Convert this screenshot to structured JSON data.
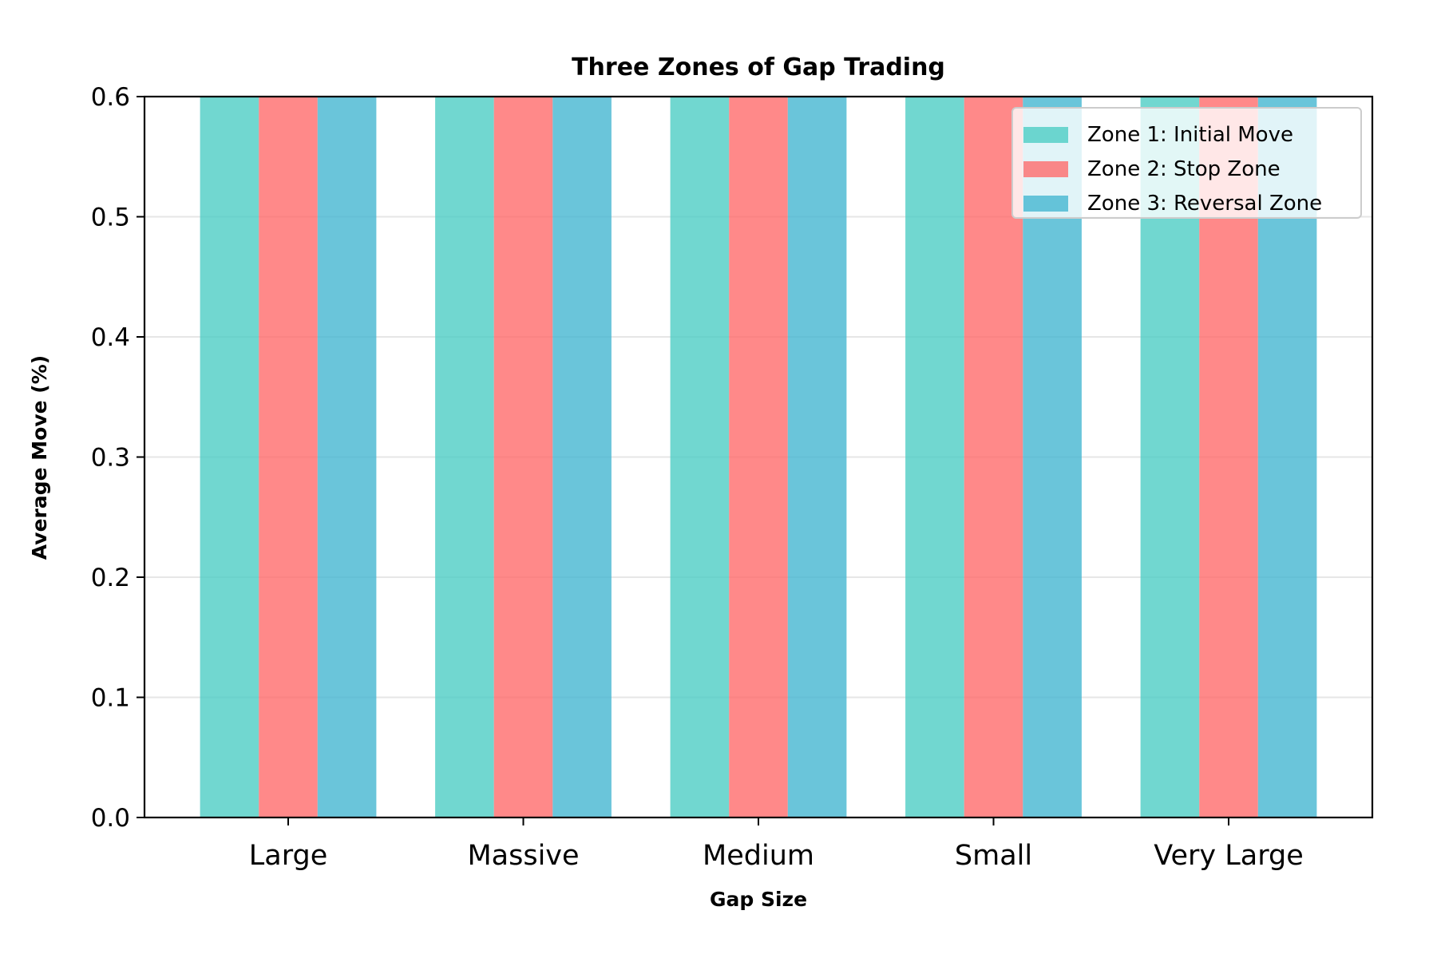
{
  "chart_data": {
    "type": "bar",
    "title": "Three Zones of Gap Trading",
    "xlabel": "Gap Size",
    "ylabel": "Average Move (%)",
    "categories": [
      "Large",
      "Massive",
      "Medium",
      "Small",
      "Very Large"
    ],
    "series": [
      {
        "name": "Zone 1: Initial Move",
        "color": "#4ecdc4",
        "values": [
          0.6,
          0.6,
          0.6,
          0.6,
          0.6
        ]
      },
      {
        "name": "Zone 2: Stop Zone",
        "color": "#ff6b6b",
        "values": [
          0.6,
          0.6,
          0.6,
          0.6,
          0.6
        ]
      },
      {
        "name": "Zone 3: Reversal Zone",
        "color": "#45b7d1",
        "values": [
          0.6,
          0.6,
          0.6,
          0.6,
          0.6
        ]
      }
    ],
    "ylim": [
      0,
      0.6
    ],
    "yticks": [
      "0.0",
      "0.1",
      "0.2",
      "0.3",
      "0.4",
      "0.5",
      "0.6"
    ],
    "grid": "y",
    "legend_position": "top-right"
  }
}
